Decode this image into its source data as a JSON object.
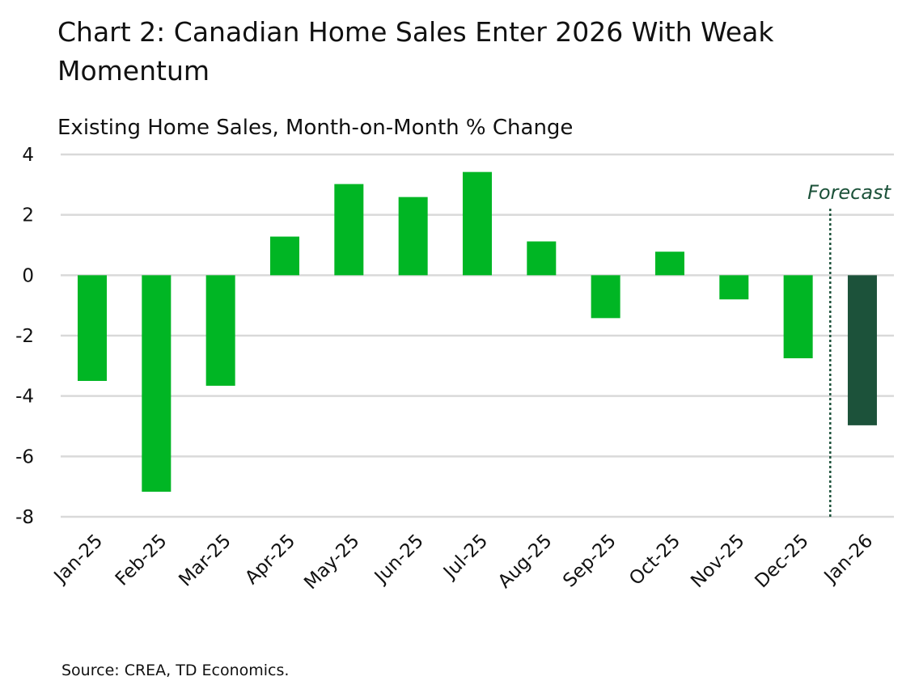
{
  "chart_data": {
    "type": "bar",
    "title": "Chart 2: Canadian Home Sales Enter 2026 With Weak Momentum",
    "subtitle": "Existing Home Sales, Month-on-Month % Change",
    "source": "Source: CREA, TD Economics.",
    "categories": [
      "Jan-25",
      "Feb-25",
      "Mar-25",
      "Apr-25",
      "May-25",
      "Jun-25",
      "Jul-25",
      "Aug-25",
      "Sep-25",
      "Oct-25",
      "Nov-25",
      "Dec-25",
      "Jan-26"
    ],
    "values": [
      -3.5,
      -7.17,
      -3.66,
      1.28,
      3.02,
      2.59,
      3.42,
      1.12,
      -1.42,
      0.78,
      -0.8,
      -2.75,
      -4.97
    ],
    "forecast_from": "Jan-26",
    "forecast_label": "Forecast",
    "ylim": [
      -8,
      4
    ],
    "yticks": [
      4,
      2,
      0,
      -2,
      -4,
      -6,
      -8
    ],
    "grid": true,
    "colors": {
      "actual": "#00b624",
      "forecast": "#1c523a",
      "grid": "#d9d9d9",
      "forecast_line": "#1c523a"
    }
  }
}
